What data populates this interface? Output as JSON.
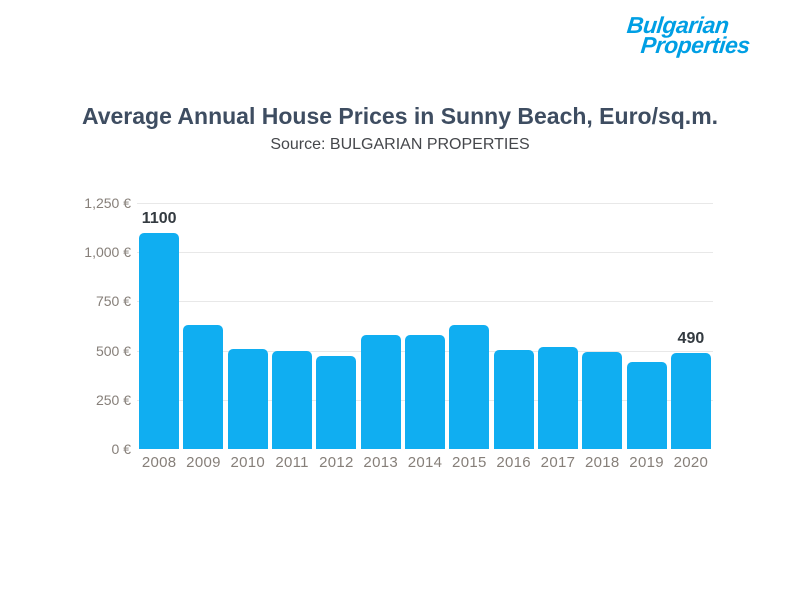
{
  "logo": {
    "line1": "Bulgarian",
    "line2": "Properties",
    "color": "#009fe4"
  },
  "header": {
    "title": "Average Annual House Prices in Sunny Beach, Euro/sq.m.",
    "subtitle": "Source: BULGARIAN PROPERTIES"
  },
  "chart_data": {
    "type": "bar",
    "title": "Average Annual House Prices in Sunny Beach, Euro/sq.m.",
    "subtitle": "Source: BULGARIAN PROPERTIES",
    "categories": [
      "2008",
      "2009",
      "2010",
      "2011",
      "2012",
      "2013",
      "2014",
      "2015",
      "2016",
      "2017",
      "2018",
      "2019",
      "2020"
    ],
    "values": [
      1100,
      630,
      510,
      500,
      475,
      580,
      580,
      630,
      505,
      520,
      495,
      440,
      490
    ],
    "point_labels": [
      "1100",
      "",
      "",
      "",
      "",
      "",
      "",
      "",
      "",
      "",
      "",
      "",
      "490"
    ],
    "y_ticks": [
      {
        "value": 1250,
        "label": "1,250 €"
      },
      {
        "value": 1000,
        "label": "1,000 €"
      },
      {
        "value": 750,
        "label": "750 €"
      },
      {
        "value": 500,
        "label": "500 €"
      },
      {
        "value": 250,
        "label": "250 €"
      },
      {
        "value": 0,
        "label": "0 €"
      }
    ],
    "xlabel": "",
    "ylabel": "",
    "ylim": [
      0,
      1250
    ],
    "grid": true,
    "legend": "none",
    "colors": {
      "bar": "#10aef1",
      "grid": "#e8e8e8",
      "axis_text": "#867f79",
      "title": "#3e4d61",
      "subtitle": "#45474b",
      "value_label": "#333a40"
    }
  }
}
